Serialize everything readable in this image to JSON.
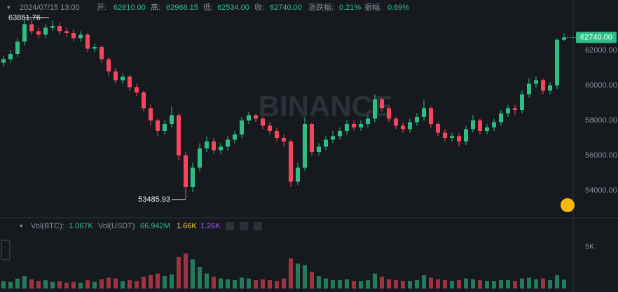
{
  "header": {
    "time": "2024/07/15 13:00",
    "open_label": "开:",
    "open": "62610.00",
    "high_label": "高:",
    "high": "62968.15",
    "low_label": "低:",
    "low": "62534.00",
    "close_label": "收:",
    "close": "62740.00",
    "change_label": "涨跌幅:",
    "change": "0.21%",
    "amplitude_label": "振幅:",
    "amplitude": "0.69%",
    "watermark": "BINANCE"
  },
  "chart_data": [
    {
      "type": "candlestick",
      "up_color": "#2ebd85",
      "down_color": "#f6465d",
      "open": [
        61300,
        61500,
        61800,
        62500,
        63500,
        63100,
        62900,
        63300,
        63400,
        63100,
        63000,
        62700,
        62900,
        62100,
        62200,
        61500,
        60800,
        60300,
        60500,
        59900,
        59600,
        58700,
        58000,
        57400,
        57800,
        58300,
        56000,
        54200,
        55300,
        56400,
        56800,
        56300,
        56500,
        56900,
        57200,
        58000,
        58300,
        58100,
        57700,
        57400,
        57000,
        56800,
        54500,
        55300,
        57800,
        56200,
        56500,
        56900,
        57100,
        57400,
        57800,
        57600,
        57800,
        58100,
        59200,
        58700,
        58100,
        57700,
        57500,
        57900,
        58200,
        58700,
        57800,
        57300,
        57000,
        57100,
        56800,
        57500,
        58000,
        57400,
        57600,
        57900,
        58400,
        58700,
        58600,
        59500,
        60100,
        60300,
        59700,
        60000,
        62610
      ],
      "high": [
        61700,
        62000,
        62700,
        63861.76,
        63700,
        63300,
        63500,
        63700,
        63600,
        63300,
        63200,
        63100,
        63000,
        62400,
        62300,
        61600,
        61000,
        60700,
        60600,
        60100,
        59700,
        58900,
        58100,
        58000,
        58800,
        58400,
        56200,
        55600,
        56700,
        57100,
        57000,
        56700,
        57100,
        57400,
        58200,
        58500,
        58400,
        58200,
        57900,
        57600,
        57200,
        56900,
        55600,
        58200,
        57900,
        56700,
        57100,
        57400,
        57600,
        58000,
        58000,
        58000,
        58300,
        59500,
        59300,
        58800,
        58200,
        57900,
        58100,
        58400,
        59200,
        58800,
        57900,
        57500,
        57300,
        57300,
        57700,
        58300,
        58100,
        57800,
        58100,
        58600,
        58900,
        58900,
        59700,
        60400,
        60500,
        60400,
        60200,
        62700,
        62968.15
      ],
      "low": [
        61100,
        61300,
        61600,
        62300,
        62900,
        62700,
        62700,
        63100,
        62900,
        62800,
        62500,
        62500,
        61900,
        61900,
        61300,
        60500,
        60100,
        60100,
        59700,
        59400,
        58500,
        57700,
        57100,
        57200,
        57600,
        55700,
        53485.93,
        53900,
        55100,
        56200,
        56100,
        56100,
        56300,
        56700,
        57000,
        57800,
        57900,
        57500,
        57200,
        56800,
        56500,
        54200,
        54300,
        55100,
        56000,
        56000,
        56300,
        56700,
        56900,
        57200,
        57400,
        57400,
        57600,
        57900,
        58500,
        57900,
        57500,
        57300,
        57300,
        57700,
        58000,
        57600,
        57100,
        56800,
        56800,
        56500,
        56600,
        57300,
        57200,
        57200,
        57400,
        57700,
        58200,
        58300,
        58400,
        59300,
        59900,
        59500,
        59500,
        59800,
        62534
      ],
      "close": [
        61500,
        61800,
        62500,
        63500,
        63100,
        62900,
        63300,
        63400,
        63100,
        63000,
        62700,
        62900,
        62100,
        62200,
        61500,
        60800,
        60300,
        60500,
        59900,
        59600,
        58700,
        58000,
        57400,
        57800,
        58300,
        56000,
        54200,
        55300,
        56400,
        56800,
        56300,
        56500,
        56900,
        57200,
        58000,
        58300,
        58100,
        57700,
        57400,
        57000,
        56800,
        54500,
        55300,
        57800,
        56200,
        56500,
        56900,
        57100,
        57400,
        57800,
        57600,
        57800,
        58100,
        59200,
        58700,
        58100,
        57700,
        57500,
        57900,
        58200,
        58700,
        57800,
        57300,
        57000,
        57100,
        56800,
        57500,
        58000,
        57400,
        57600,
        57900,
        58400,
        58700,
        58600,
        59500,
        60100,
        60300,
        59700,
        60000,
        62610,
        62740
      ],
      "ylim": [
        52480,
        64880
      ],
      "yticks": [
        {
          "value": 54000,
          "label": "54000.00"
        },
        {
          "value": 56000,
          "label": "56000.00"
        },
        {
          "value": 58000,
          "label": "58000.00"
        },
        {
          "value": 60000,
          "label": "60000.00"
        },
        {
          "value": 62000,
          "label": "62000.00"
        }
      ],
      "high_label": "63861.76",
      "low_label": "53485.93",
      "last_label": "62740.00"
    },
    {
      "type": "bar",
      "title": "Vol(BTC):",
      "value_label": "1.067K",
      "title2": "Vol(USDT)",
      "value2_label": "66.942M",
      "ma1_label": "1.66K",
      "ma1_color": "#f0d23c",
      "ma2_label": "1.26K",
      "ma2_color": "#a259ff",
      "values": [
        900,
        800,
        1200,
        1500,
        1100,
        900,
        1000,
        800,
        900,
        700,
        800,
        700,
        1000,
        800,
        1100,
        1300,
        1200,
        900,
        1000,
        900,
        1400,
        1600,
        1800,
        1500,
        1700,
        3800,
        4200,
        3500,
        2600,
        1800,
        1400,
        1200,
        1100,
        1000,
        1300,
        1200,
        1000,
        1100,
        1000,
        900,
        1200,
        3600,
        3000,
        2800,
        2000,
        1500,
        1200,
        1000,
        1000,
        1100,
        900,
        900,
        1000,
        1800,
        1400,
        1100,
        1000,
        900,
        900,
        1000,
        1600,
        1300,
        1100,
        1000,
        900,
        1000,
        1200,
        1100,
        1000,
        900,
        900,
        1000,
        1000,
        900,
        1200,
        1300,
        1100,
        1200,
        1000,
        1600,
        1067
      ],
      "ylim": [
        0,
        8500
      ],
      "yticks": [
        {
          "value": 5000,
          "label": "5K"
        }
      ]
    }
  ]
}
